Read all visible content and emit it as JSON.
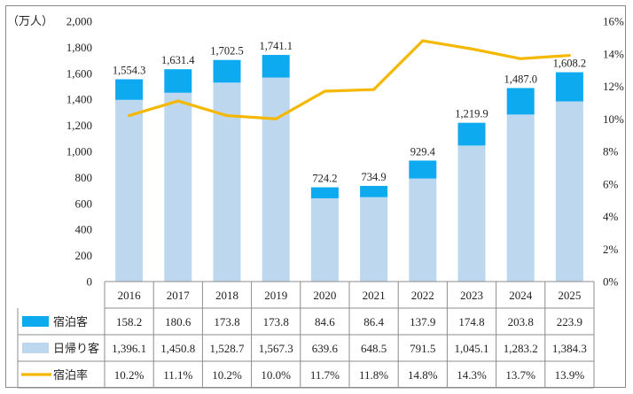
{
  "chart_data": {
    "type": "bar",
    "stacked": true,
    "y_unit_label": "（万人）",
    "categories": [
      "2016",
      "2017",
      "2018",
      "2019",
      "2020",
      "2021",
      "2022",
      "2023",
      "2024",
      "2025"
    ],
    "totals": [
      "1,554.3",
      "1,631.4",
      "1,702.5",
      "1,741.1",
      "724.2",
      "734.9",
      "929.4",
      "1,219.9",
      "1,487.0",
      "1,608.2"
    ],
    "series": [
      {
        "name": "宿泊客",
        "kind": "bar",
        "color": "#0eaaf0",
        "values": [
          158.2,
          180.6,
          173.8,
          173.8,
          84.6,
          86.4,
          137.9,
          174.8,
          203.8,
          223.9
        ],
        "labels": [
          "158.2",
          "180.6",
          "173.8",
          "173.8",
          "84.6",
          "86.4",
          "137.9",
          "174.8",
          "203.8",
          "223.9"
        ]
      },
      {
        "name": "日帰り客",
        "kind": "bar",
        "color": "#bdd7ee",
        "values": [
          1396.1,
          1450.8,
          1528.7,
          1567.3,
          639.6,
          648.5,
          791.5,
          1045.1,
          1283.2,
          1384.3
        ],
        "labels": [
          "1,396.1",
          "1,450.8",
          "1,528.7",
          "1,567.3",
          "639.6",
          "648.5",
          "791.5",
          "1,045.1",
          "1,283.2",
          "1,384.3"
        ]
      },
      {
        "name": "宿泊率",
        "kind": "line",
        "axis": "right",
        "color": "#f5b800",
        "values": [
          10.2,
          11.1,
          10.2,
          10.0,
          11.7,
          11.8,
          14.8,
          14.3,
          13.7,
          13.9
        ],
        "labels": [
          "10.2%",
          "11.1%",
          "10.2%",
          "10.0%",
          "11.7%",
          "11.8%",
          "14.8%",
          "14.3%",
          "13.7%",
          "13.9%"
        ]
      }
    ],
    "y_left": {
      "min": 0,
      "max": 2000,
      "ticks": [
        0,
        200,
        400,
        600,
        800,
        1000,
        1200,
        1400,
        1600,
        1800,
        2000
      ],
      "tick_labels": [
        "0",
        "200",
        "400",
        "600",
        "800",
        "1,000",
        "1,200",
        "1,400",
        "1,600",
        "1,800",
        "2,000"
      ]
    },
    "y_right": {
      "min": 0,
      "max": 16,
      "ticks": [
        0,
        2,
        4,
        6,
        8,
        10,
        12,
        14,
        16
      ],
      "tick_labels": [
        "0%",
        "2%",
        "4%",
        "6%",
        "8%",
        "10%",
        "12%",
        "14%",
        "16%"
      ]
    },
    "gridlines": false,
    "legend": "data-table"
  }
}
